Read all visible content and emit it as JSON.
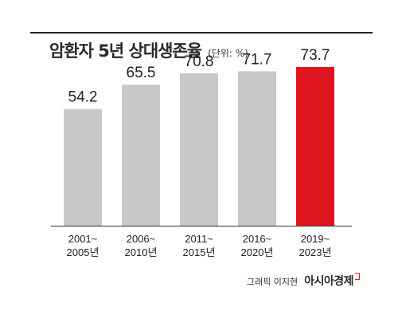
{
  "header": {
    "title": "암환자 5년 상대생존율",
    "unit": "(단위: %)"
  },
  "footer": {
    "credit": "그래픽 이지현",
    "brand": "아시아경제"
  },
  "colors": {
    "bar": "#c8c8c8",
    "highlight": "#e0141e",
    "text": "#222222"
  },
  "chart_data": {
    "type": "bar",
    "categories": [
      "2001~\n2005년",
      "2006~\n2010년",
      "2011~\n2015년",
      "2016~\n2020년",
      "2019~\n2023년"
    ],
    "values": [
      54.2,
      65.5,
      70.8,
      71.7,
      73.7
    ],
    "value_labels": [
      "54.2",
      "65.5",
      "70.8",
      "71.7",
      "73.7"
    ],
    "highlight_index": 4,
    "ylim": [
      0,
      90
    ],
    "grid": false,
    "legend": "none"
  }
}
